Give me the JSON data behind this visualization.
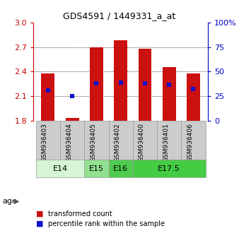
{
  "title": "GDS4591 / 1449331_a_at",
  "samples": [
    "GSM936403",
    "GSM936404",
    "GSM936405",
    "GSM936402",
    "GSM936400",
    "GSM936401",
    "GSM936406"
  ],
  "red_values": [
    2.38,
    1.83,
    2.7,
    2.78,
    2.68,
    2.45,
    2.38
  ],
  "blue_values": [
    2.17,
    2.1,
    2.255,
    2.265,
    2.255,
    2.235,
    2.185
  ],
  "y_min": 1.8,
  "y_max": 3.0,
  "y_ticks_left": [
    1.8,
    2.1,
    2.4,
    2.7,
    3.0
  ],
  "y_ticks_right": [
    0,
    25,
    50,
    75,
    100
  ],
  "age_groups": [
    {
      "label": "E14",
      "start": 0,
      "end": 2,
      "color": "#d6f5d6"
    },
    {
      "label": "E15",
      "start": 2,
      "end": 3,
      "color": "#90e090"
    },
    {
      "label": "E16",
      "start": 3,
      "end": 4,
      "color": "#50cc50"
    },
    {
      "label": "E17.5",
      "start": 4,
      "end": 7,
      "color": "#44cc44"
    }
  ],
  "bar_color": "#cc1111",
  "blue_color": "#1111cc",
  "bar_width": 0.55,
  "legend_red": "transformed count",
  "legend_blue": "percentile rank within the sample",
  "left_axis_color": "#cc0000",
  "right_axis_color": "#0000cc",
  "grid_lines": [
    2.1,
    2.4,
    2.7
  ],
  "sample_bg": "#cccccc",
  "sample_edge": "#999999"
}
